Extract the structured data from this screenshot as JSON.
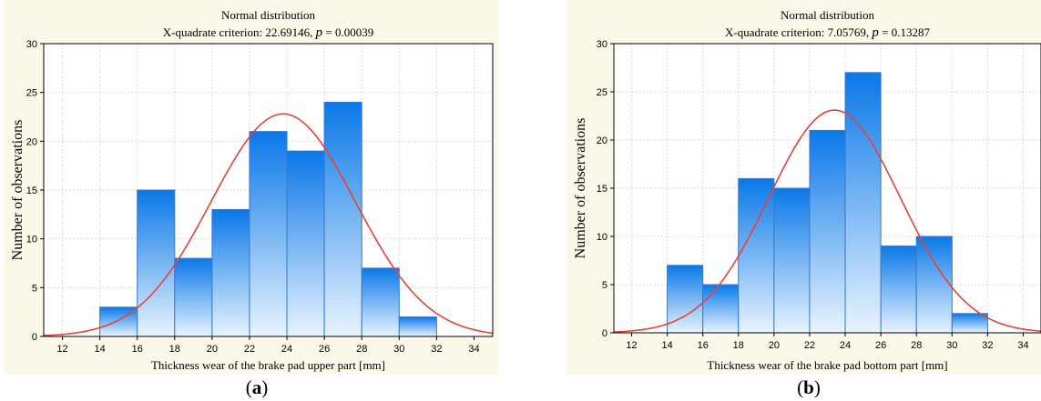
{
  "chart_data": [
    {
      "type": "bar",
      "title": "Normal distribution",
      "subtitle_prefix": "X-quadrate criterion: 22.69146, ",
      "subtitle_p": "p",
      "subtitle_suffix": " = 0.00039",
      "xlabel": "Thickness wear of the brake pad upper part [mm]",
      "ylabel": "Number of observations",
      "xlim": [
        11,
        35
      ],
      "ylim": [
        0,
        30
      ],
      "x_ticks": [
        "12",
        "14",
        "16",
        "18",
        "20",
        "22",
        "24",
        "26",
        "28",
        "30",
        "32",
        "34"
      ],
      "y_ticks": [
        "0",
        "5",
        "10",
        "15",
        "20",
        "25",
        "30"
      ],
      "bin_edges": [
        14,
        16,
        18,
        20,
        22,
        24,
        26,
        28,
        30,
        32
      ],
      "values": [
        3,
        15,
        8,
        13,
        21,
        19,
        24,
        7,
        2
      ],
      "fit": {
        "type": "normal",
        "mean": 23.8,
        "sd": 3.85,
        "peak": 22.8
      },
      "grid": true,
      "colors": {
        "bar_top": "#0a78e8",
        "bar_bottom": "#e8f4ff",
        "curve": "#e8413c",
        "plot_bg": "#ffffff",
        "frame_bg": "#fbf7e9"
      }
    },
    {
      "type": "bar",
      "title": "Normal distribution",
      "subtitle_prefix": "X-quadrate criterion: 7.05769, ",
      "subtitle_p": "p",
      "subtitle_suffix": " = 0.13287",
      "xlabel": "Thickness wear of the brake pad bottom part [mm]",
      "ylabel": "Number of observations",
      "xlim": [
        11,
        35
      ],
      "ylim": [
        0,
        30
      ],
      "x_ticks": [
        "12",
        "14",
        "16",
        "18",
        "20",
        "22",
        "24",
        "26",
        "28",
        "30",
        "32",
        "34"
      ],
      "y_ticks": [
        "0",
        "5",
        "10",
        "15",
        "20",
        "25",
        "30"
      ],
      "bin_edges": [
        14,
        16,
        18,
        20,
        22,
        24,
        26,
        28,
        30,
        32
      ],
      "values": [
        7,
        5,
        16,
        15,
        21,
        27,
        9,
        10,
        2
      ],
      "fit": {
        "type": "normal",
        "mean": 23.4,
        "sd": 3.7,
        "peak": 23.1
      },
      "grid": true,
      "colors": {
        "bar_top": "#0a78e8",
        "bar_bottom": "#e8f4ff",
        "curve": "#e8413c",
        "plot_bg": "#ffffff",
        "frame_bg": "#fbf7e9"
      }
    }
  ],
  "captions": [
    {
      "open": "(",
      "letter": "a",
      "close": ")"
    },
    {
      "open": "(",
      "letter": "b",
      "close": ")"
    }
  ]
}
